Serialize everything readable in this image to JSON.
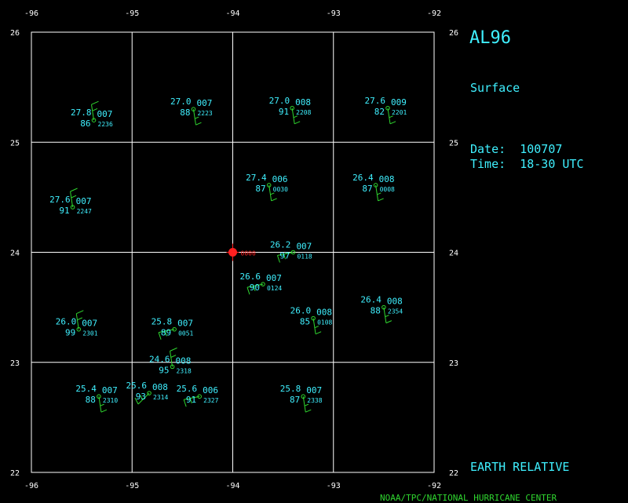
{
  "header": {
    "title": "AL96",
    "level": "Surface",
    "date_label": "Date:",
    "date": "100707",
    "time_label": "Time:",
    "time": "18-30 UTC",
    "frame": "EARTH RELATIVE",
    "credit": "NOAA/TPC/NATIONAL HURRICANE CENTER"
  },
  "colors": {
    "text": "#3ff0ff",
    "barb": "#2fd62f",
    "grid": "#ffffff",
    "center": "#ff2020",
    "background": "#000000"
  },
  "map": {
    "lon_range": [
      -96,
      -92
    ],
    "lat_range": [
      22,
      26
    ],
    "lon_ticks": [
      "-96",
      "-95",
      "-94",
      "-93",
      "-92"
    ],
    "lat_ticks": [
      "22",
      "23",
      "24",
      "25",
      "26"
    ]
  },
  "center": {
    "lon": -94.0,
    "lat": 24.0,
    "label": "0000"
  },
  "observations": [
    {
      "lon": -95.38,
      "lat": 25.2,
      "temp": "27.8",
      "id": "007",
      "rh": "86",
      "time": "2236",
      "barb": "n"
    },
    {
      "lon": -94.39,
      "lat": 25.3,
      "temp": "27.0",
      "id": "007",
      "rh": "88",
      "time": "2223",
      "barb": "s"
    },
    {
      "lon": -93.41,
      "lat": 25.31,
      "temp": "27.0",
      "id": "008",
      "rh": "91",
      "time": "2208",
      "barb": "s"
    },
    {
      "lon": -92.46,
      "lat": 25.31,
      "temp": "27.6",
      "id": "009",
      "rh": "82",
      "time": "2201",
      "barb": "s"
    },
    {
      "lon": -95.59,
      "lat": 24.41,
      "temp": "27.6",
      "id": "007",
      "rh": "91",
      "time": "2247",
      "barb": "n"
    },
    {
      "lon": -93.64,
      "lat": 24.61,
      "temp": "27.4",
      "id": "006",
      "rh": "87",
      "time": "0030",
      "barb": "s"
    },
    {
      "lon": -92.58,
      "lat": 24.61,
      "temp": "26.4",
      "id": "008",
      "rh": "87",
      "time": "0008",
      "barb": "s"
    },
    {
      "lon": -93.4,
      "lat": 24.0,
      "temp": "26.2",
      "id": "007",
      "rh": "97",
      "time": "0118",
      "barb": "w"
    },
    {
      "lon": -93.7,
      "lat": 23.71,
      "temp": "26.6",
      "id": "007",
      "rh": "90",
      "time": "0124",
      "barb": "w"
    },
    {
      "lon": -93.2,
      "lat": 23.4,
      "temp": "26.0",
      "id": "008",
      "rh": "85",
      "time": "0108",
      "barb": "s"
    },
    {
      "lon": -92.5,
      "lat": 23.5,
      "temp": "26.4",
      "id": "008",
      "rh": "88",
      "time": "2354",
      "barb": "s"
    },
    {
      "lon": -95.53,
      "lat": 23.3,
      "temp": "26.0",
      "id": "007",
      "rh": "99",
      "time": "2301",
      "barb": "n"
    },
    {
      "lon": -94.58,
      "lat": 23.3,
      "temp": "25.8",
      "id": "007",
      "rh": "89",
      "time": "0051",
      "barb": "w"
    },
    {
      "lon": -94.6,
      "lat": 22.96,
      "temp": "24.6",
      "id": "008",
      "rh": "95",
      "time": "2318",
      "barb": "n"
    },
    {
      "lon": -94.83,
      "lat": 22.72,
      "temp": "25.6",
      "id": "008",
      "rh": "93",
      "time": "2314",
      "barb": "sw"
    },
    {
      "lon": -94.33,
      "lat": 22.69,
      "temp": "25.6",
      "id": "006",
      "rh": "91",
      "time": "2327",
      "barb": "w"
    },
    {
      "lon": -95.33,
      "lat": 22.69,
      "temp": "25.4",
      "id": "007",
      "rh": "88",
      "time": "2310",
      "barb": "s"
    },
    {
      "lon": -93.3,
      "lat": 22.69,
      "temp": "25.8",
      "id": "007",
      "rh": "87",
      "time": "2338",
      "barb": "s"
    }
  ]
}
